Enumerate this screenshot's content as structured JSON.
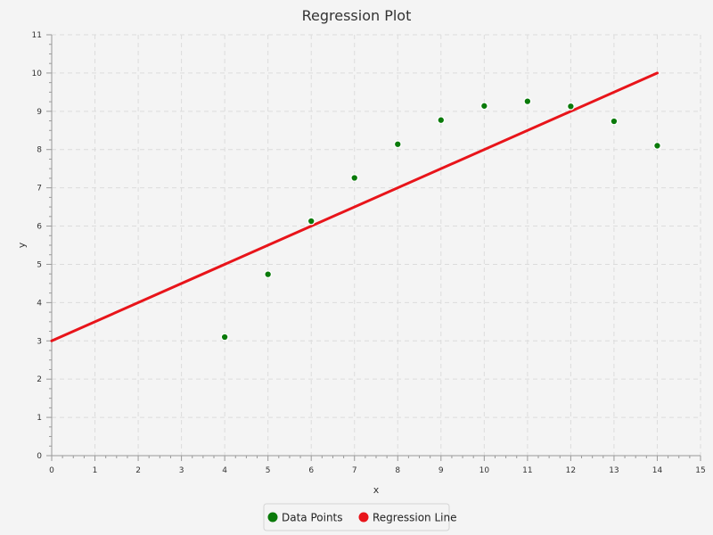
{
  "chart_data": {
    "type": "scatter",
    "title": "Regression Plot",
    "xlabel": "x",
    "ylabel": "y",
    "xlim": [
      0,
      15
    ],
    "ylim": [
      0,
      11
    ],
    "x_ticks": [
      0,
      1,
      2,
      3,
      4,
      5,
      6,
      7,
      8,
      9,
      10,
      11,
      12,
      13,
      14,
      15
    ],
    "y_ticks": [
      0,
      1,
      2,
      3,
      4,
      5,
      6,
      7,
      8,
      9,
      10,
      11
    ],
    "grid": true,
    "legend_position": "bottom-center",
    "series": [
      {
        "name": "Data Points",
        "type": "scatter",
        "color": "#0a7a0a",
        "points": [
          {
            "x": 4,
            "y": 3.1
          },
          {
            "x": 5,
            "y": 4.74
          },
          {
            "x": 6,
            "y": 6.13
          },
          {
            "x": 7,
            "y": 7.26
          },
          {
            "x": 8,
            "y": 8.14
          },
          {
            "x": 9,
            "y": 8.77
          },
          {
            "x": 10,
            "y": 9.14
          },
          {
            "x": 11,
            "y": 9.26
          },
          {
            "x": 12,
            "y": 9.13
          },
          {
            "x": 13,
            "y": 8.74
          },
          {
            "x": 14,
            "y": 8.1
          }
        ]
      },
      {
        "name": "Regression Line",
        "type": "line",
        "color": "#e8141a",
        "points": [
          {
            "x": 0,
            "y": 3.0
          },
          {
            "x": 14,
            "y": 10.0
          }
        ]
      }
    ]
  },
  "colors": {
    "background": "#f4f4f4",
    "grid": "#dcdcdc",
    "axis": "#999999"
  }
}
